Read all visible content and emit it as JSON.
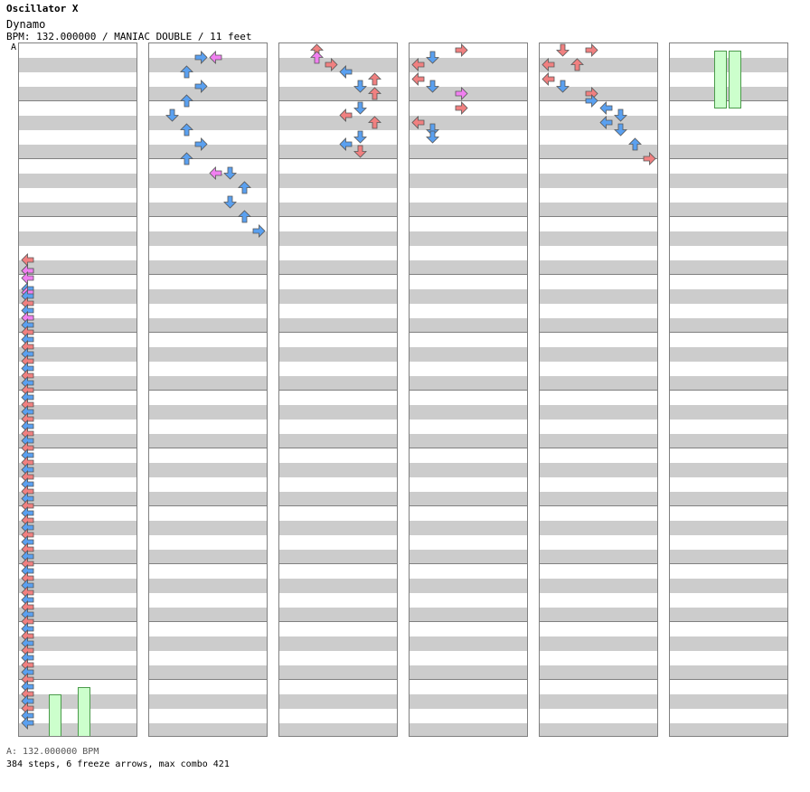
{
  "header": {
    "title": "Oscillator X",
    "song": "Dynamo",
    "meta": "BPM: 132.000000 / MANIAC DOUBLE / 11 feet"
  },
  "bpm_marker": "A",
  "footer": {
    "bpm": "A: 132.000000 BPM",
    "stats": "384 steps, 6 freeze arrows, max combo 421"
  },
  "colors": {
    "quarter": "#f08080",
    "eighth": "#5aa0f0",
    "sixteenth": "#f080f0",
    "freeze": "#ccffcc"
  },
  "icon_dirs": [
    "left-arrow-icon",
    "down-arrow-icon",
    "up-arrow-icon",
    "right-arrow-icon"
  ],
  "columns": [
    {
      "notes": [
        [
          0,
          232,
          "r"
        ],
        [
          0,
          244,
          "b"
        ],
        [
          0,
          244,
          "p"
        ],
        [
          0,
          252,
          "p"
        ],
        [
          0,
          264,
          "b"
        ],
        [
          0,
          268,
          "p"
        ],
        [
          0,
          272,
          "b"
        ],
        [
          0,
          280,
          "r"
        ],
        [
          0,
          288,
          "b"
        ],
        [
          0,
          296,
          "r"
        ],
        [
          0,
          296,
          "p"
        ],
        [
          0,
          304,
          "b"
        ],
        [
          0,
          312,
          "r"
        ],
        [
          0,
          320,
          "b"
        ],
        [
          0,
          328,
          "r"
        ],
        [
          0,
          336,
          "b"
        ],
        [
          0,
          344,
          "r"
        ],
        [
          0,
          352,
          "b"
        ],
        [
          0,
          360,
          "r"
        ],
        [
          0,
          368,
          "b"
        ],
        [
          0,
          376,
          "r"
        ],
        [
          0,
          384,
          "b"
        ],
        [
          0,
          392,
          "r"
        ],
        [
          0,
          400,
          "b"
        ],
        [
          0,
          408,
          "r"
        ],
        [
          0,
          416,
          "b"
        ],
        [
          0,
          424,
          "r"
        ],
        [
          0,
          432,
          "b"
        ],
        [
          0,
          440,
          "r"
        ],
        [
          0,
          448,
          "b"
        ],
        [
          0,
          456,
          "r"
        ],
        [
          0,
          464,
          "b"
        ],
        [
          0,
          472,
          "r"
        ],
        [
          0,
          480,
          "b"
        ],
        [
          0,
          488,
          "r"
        ],
        [
          0,
          496,
          "b"
        ],
        [
          0,
          504,
          "r"
        ],
        [
          0,
          512,
          "b"
        ],
        [
          0,
          520,
          "r"
        ],
        [
          0,
          528,
          "b"
        ],
        [
          0,
          536,
          "r"
        ],
        [
          0,
          544,
          "b"
        ],
        [
          0,
          552,
          "r"
        ],
        [
          0,
          560,
          "b"
        ],
        [
          0,
          568,
          "r"
        ],
        [
          0,
          576,
          "b"
        ],
        [
          0,
          584,
          "r"
        ],
        [
          0,
          592,
          "b"
        ],
        [
          0,
          600,
          "r"
        ],
        [
          0,
          608,
          "b"
        ],
        [
          0,
          616,
          "r"
        ],
        [
          0,
          624,
          "b"
        ],
        [
          0,
          632,
          "r"
        ],
        [
          0,
          640,
          "b"
        ],
        [
          0,
          648,
          "r"
        ],
        [
          0,
          656,
          "b"
        ],
        [
          0,
          664,
          "r"
        ],
        [
          0,
          672,
          "b"
        ],
        [
          0,
          680,
          "r"
        ],
        [
          0,
          688,
          "b"
        ],
        [
          0,
          696,
          "r"
        ],
        [
          0,
          704,
          "b"
        ],
        [
          0,
          712,
          "r"
        ],
        [
          0,
          720,
          "b"
        ],
        [
          0,
          728,
          "r"
        ],
        [
          0,
          736,
          "b"
        ],
        [
          0,
          744,
          "b"
        ]
      ],
      "freezes": [
        [
          2,
          712,
          768
        ],
        [
          4,
          704,
          768
        ]
      ]
    },
    {
      "notes": [
        [
          3,
          8,
          "b"
        ],
        [
          4,
          8,
          "p"
        ],
        [
          2,
          24,
          "b"
        ],
        [
          3,
          40,
          "b"
        ],
        [
          2,
          56,
          "b"
        ],
        [
          1,
          72,
          "b"
        ],
        [
          2,
          88,
          "b"
        ],
        [
          3,
          104,
          "b"
        ],
        [
          2,
          120,
          "b"
        ],
        [
          4,
          136,
          "p"
        ],
        [
          5,
          136,
          "b"
        ],
        [
          6,
          152,
          "b"
        ],
        [
          5,
          168,
          "b"
        ],
        [
          6,
          184,
          "b"
        ],
        [
          7,
          200,
          "b"
        ]
      ]
    },
    {
      "notes": [
        [
          2,
          0,
          "r"
        ],
        [
          2,
          8,
          "p"
        ],
        [
          3,
          16,
          "r"
        ],
        [
          4,
          24,
          "b"
        ],
        [
          6,
          32,
          "r"
        ],
        [
          5,
          40,
          "b"
        ],
        [
          6,
          48,
          "r"
        ],
        [
          5,
          64,
          "b"
        ],
        [
          4,
          72,
          "r"
        ],
        [
          6,
          80,
          "r"
        ],
        [
          5,
          96,
          "b"
        ],
        [
          4,
          104,
          "b"
        ],
        [
          5,
          112,
          "r"
        ]
      ]
    },
    {
      "notes": [
        [
          3,
          0,
          "r"
        ],
        [
          1,
          8,
          "b"
        ],
        [
          0,
          16,
          "r"
        ],
        [
          0,
          32,
          "r"
        ],
        [
          1,
          40,
          "b"
        ],
        [
          3,
          48,
          "p"
        ],
        [
          3,
          64,
          "r"
        ],
        [
          0,
          80,
          "r"
        ],
        [
          1,
          88,
          "b"
        ],
        [
          1,
          96,
          "b"
        ]
      ]
    },
    {
      "notes": [
        [
          1,
          0,
          "r"
        ],
        [
          3,
          0,
          "r"
        ],
        [
          0,
          16,
          "r"
        ],
        [
          2,
          16,
          "r"
        ],
        [
          0,
          32,
          "r"
        ],
        [
          1,
          40,
          "b"
        ],
        [
          3,
          48,
          "r"
        ],
        [
          3,
          56,
          "b"
        ],
        [
          4,
          64,
          "b"
        ],
        [
          5,
          72,
          "b"
        ],
        [
          4,
          80,
          "b"
        ],
        [
          5,
          88,
          "b"
        ],
        [
          6,
          104,
          "b"
        ],
        [
          7,
          120,
          "r"
        ]
      ]
    },
    {
      "notes": [],
      "freezes": [
        [
          3,
          0,
          72
        ],
        [
          4,
          0,
          72
        ]
      ]
    }
  ]
}
